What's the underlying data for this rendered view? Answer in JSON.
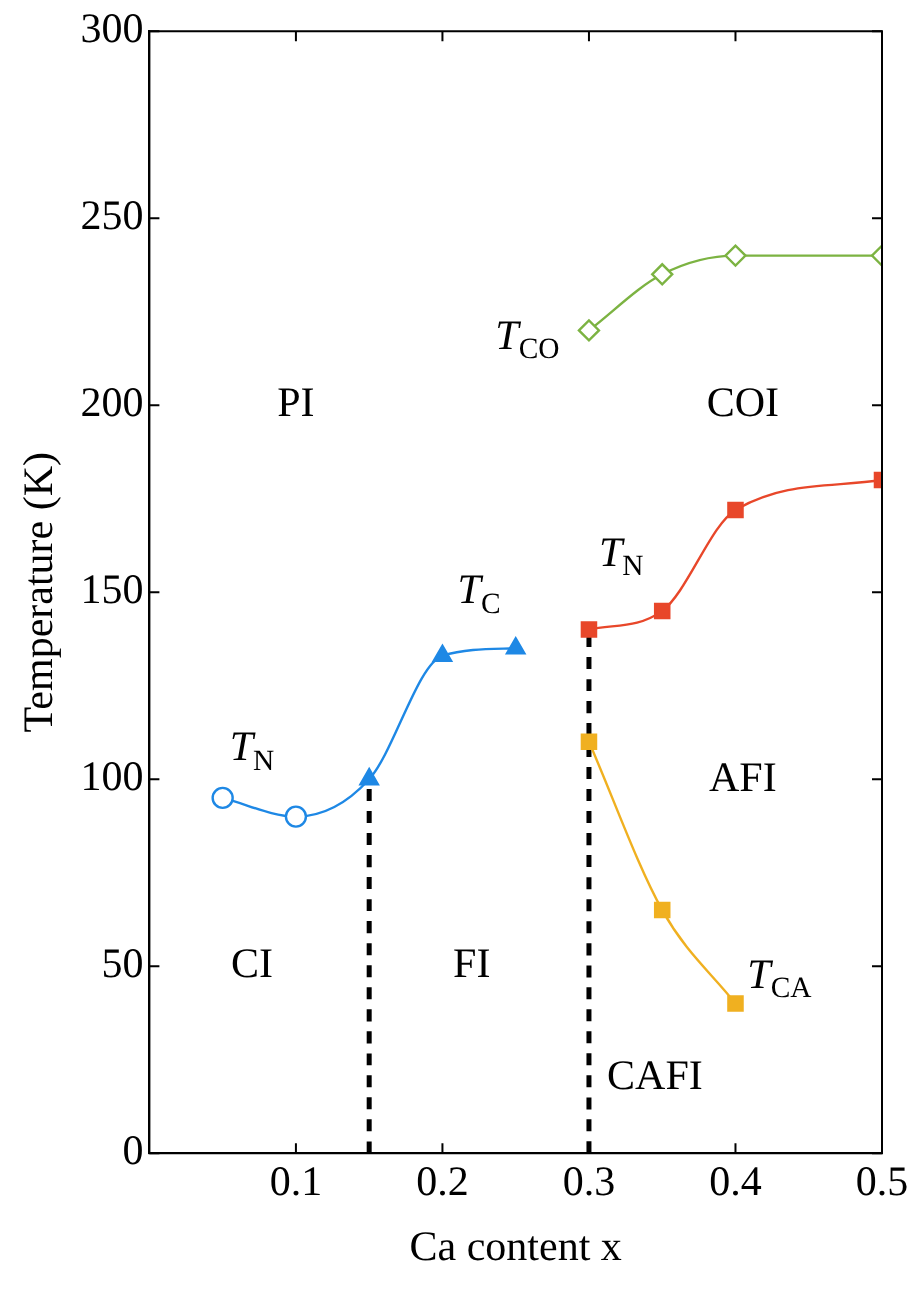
{
  "chart_data": {
    "type": "line",
    "xlabel": "Ca content x",
    "ylabel": "Temperature (K)",
    "xlim": [
      0,
      0.5
    ],
    "xticks": [
      0.1,
      0.2,
      0.3,
      0.4,
      0.5
    ],
    "ylim": [
      0,
      300
    ],
    "yticks": [
      0,
      50,
      100,
      150,
      200,
      250,
      300
    ],
    "grid": false,
    "legend": false,
    "series": [
      {
        "type": "line",
        "x": [
          0.05,
          0.1,
          0.15,
          0.2,
          0.25
        ],
        "values": [
          95,
          90,
          100,
          133,
          135
        ],
        "color": "#1e88e5",
        "marker": "none"
      },
      {
        "type": "scatter",
        "x": [
          0.05,
          0.1
        ],
        "values": [
          95,
          90
        ],
        "color": "#1e88e5",
        "marker": "circle"
      },
      {
        "type": "scatter",
        "x": [
          0.15,
          0.2,
          0.25
        ],
        "values": [
          100,
          133,
          135
        ],
        "color": "#1e88e5",
        "marker": "triangle"
      },
      {
        "type": "line",
        "x": [
          0.3,
          0.35,
          0.4,
          0.5
        ],
        "values": [
          140,
          145,
          172,
          180
        ],
        "color": "#e8472a",
        "marker": "square"
      },
      {
        "type": "line",
        "x": [
          0.3,
          0.35,
          0.4
        ],
        "values": [
          110,
          65,
          40
        ],
        "color": "#f0b020",
        "marker": "square"
      },
      {
        "type": "line",
        "x": [
          0.3,
          0.35,
          0.4,
          0.5
        ],
        "values": [
          220,
          235,
          240,
          240
        ],
        "color": "#7cb342",
        "marker": "diamond"
      },
      {
        "type": "line",
        "x": [
          0.15,
          0.15
        ],
        "values": [
          0,
          100
        ],
        "color": "#000000",
        "marker": "none",
        "line_style": "dashed"
      },
      {
        "type": "line",
        "x": [
          0.3,
          0.3
        ],
        "values": [
          0,
          140
        ],
        "color": "#000000",
        "marker": "none",
        "line_style": "dashed"
      }
    ],
    "annotations": [
      "PI",
      "COI",
      "CI",
      "FI",
      "AFI",
      "CAFI",
      "T$_{N}$",
      "T$_{C}$",
      "T$_{CO}$",
      "T$_{N}$",
      "T$_{CA}$"
    ]
  }
}
